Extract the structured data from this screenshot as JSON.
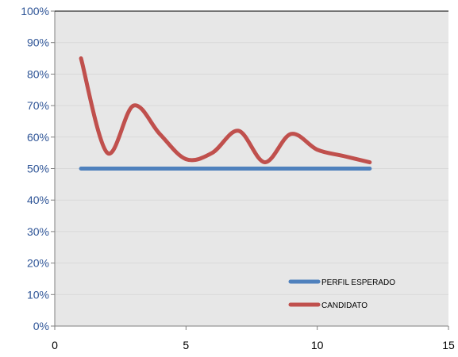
{
  "chart_data": {
    "type": "line",
    "title": "",
    "xlabel": "",
    "ylabel": "",
    "xlim": [
      0,
      15
    ],
    "ylim": [
      0,
      1
    ],
    "x_ticks": [
      "0",
      "5",
      "10",
      "15"
    ],
    "y_ticks": [
      "0%",
      "10%",
      "20%",
      "30%",
      "40%",
      "50%",
      "60%",
      "70%",
      "80%",
      "90%",
      "100%"
    ],
    "grid": true,
    "legend_position": "bottom-right",
    "series": [
      {
        "name": "PERFIL ESPERADO",
        "color": "#4F81BD",
        "x": [
          1,
          2,
          3,
          4,
          5,
          6,
          7,
          8,
          9,
          10,
          11,
          12
        ],
        "values": [
          0.5,
          0.5,
          0.5,
          0.5,
          0.5,
          0.5,
          0.5,
          0.5,
          0.5,
          0.5,
          0.5,
          0.5
        ]
      },
      {
        "name": "CANDIDATO",
        "color": "#C0504D",
        "x": [
          1,
          2,
          3,
          4,
          5,
          6,
          7,
          8,
          9,
          10,
          11,
          12
        ],
        "values": [
          0.85,
          0.55,
          0.7,
          0.61,
          0.53,
          0.55,
          0.62,
          0.52,
          0.61,
          0.56,
          0.54,
          0.52
        ]
      }
    ],
    "colors": {
      "plot_background": "#E7E7E7",
      "grid": "#D9D9D9",
      "axis": "#7F7F7F",
      "y_tick_text": "#2F5597",
      "x_tick_text": "#000000"
    }
  }
}
